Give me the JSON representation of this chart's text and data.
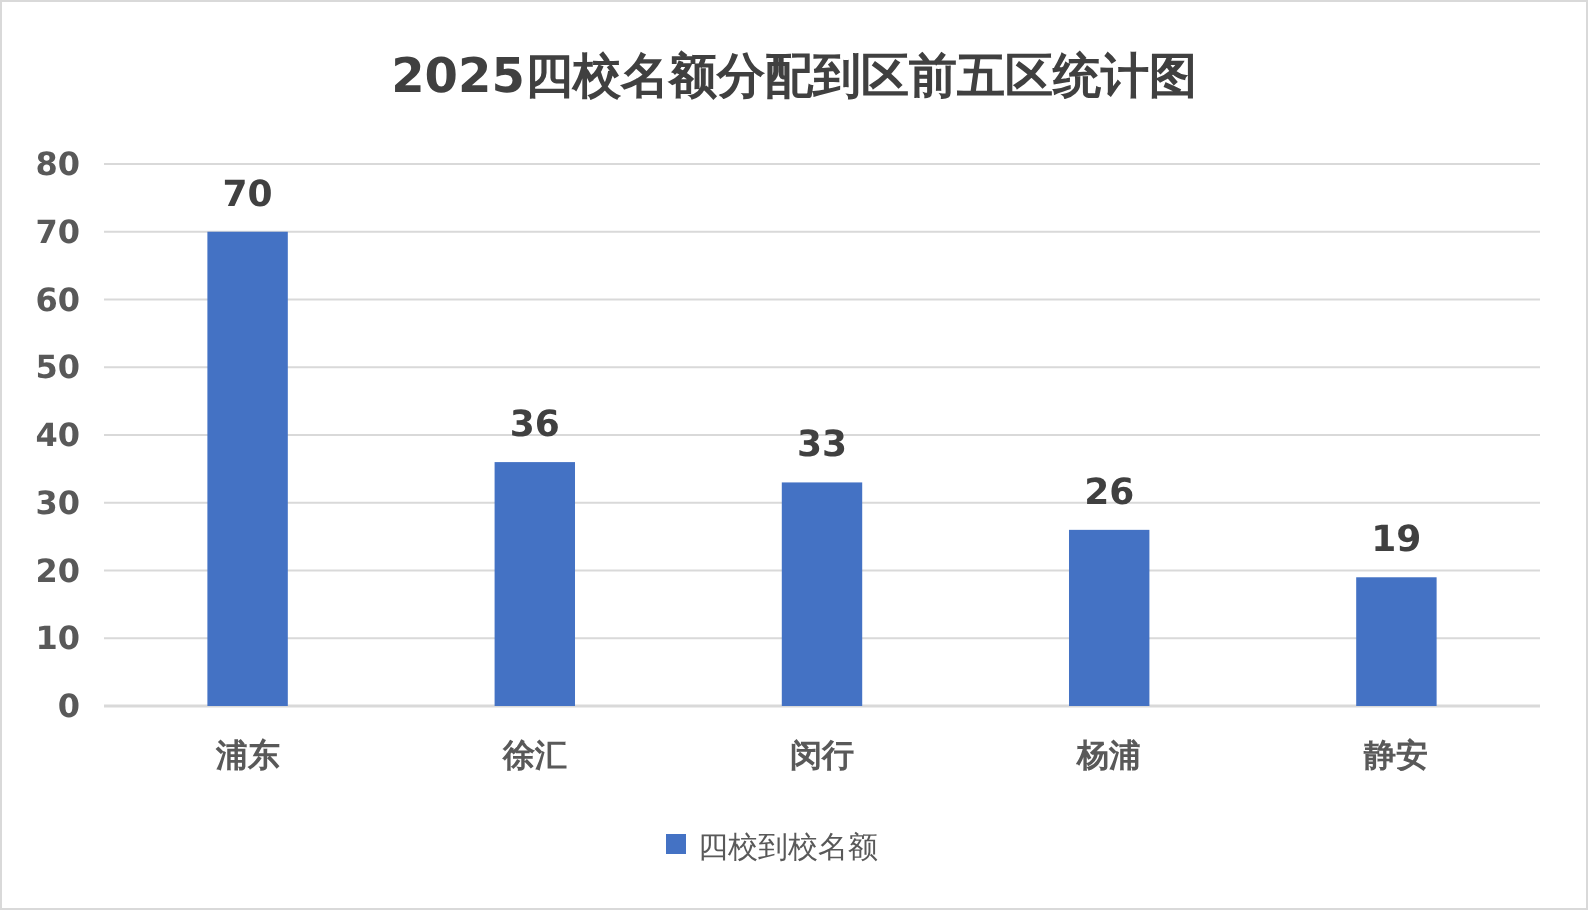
{
  "chart_data": {
    "type": "bar",
    "title": "2025四校名额分配到区前五区统计图",
    "categories": [
      "浦东",
      "徐汇",
      "闵行",
      "杨浦",
      "静安"
    ],
    "series": [
      {
        "name": "四校到校名额",
        "color": "#4472c4",
        "values": [
          70,
          36,
          33,
          26,
          19
        ]
      }
    ],
    "ylim": [
      0,
      80
    ],
    "yticks": [
      0,
      10,
      20,
      30,
      40,
      50,
      60,
      70,
      80
    ],
    "grid": "y",
    "data_labels": true,
    "legend": "bottom"
  }
}
